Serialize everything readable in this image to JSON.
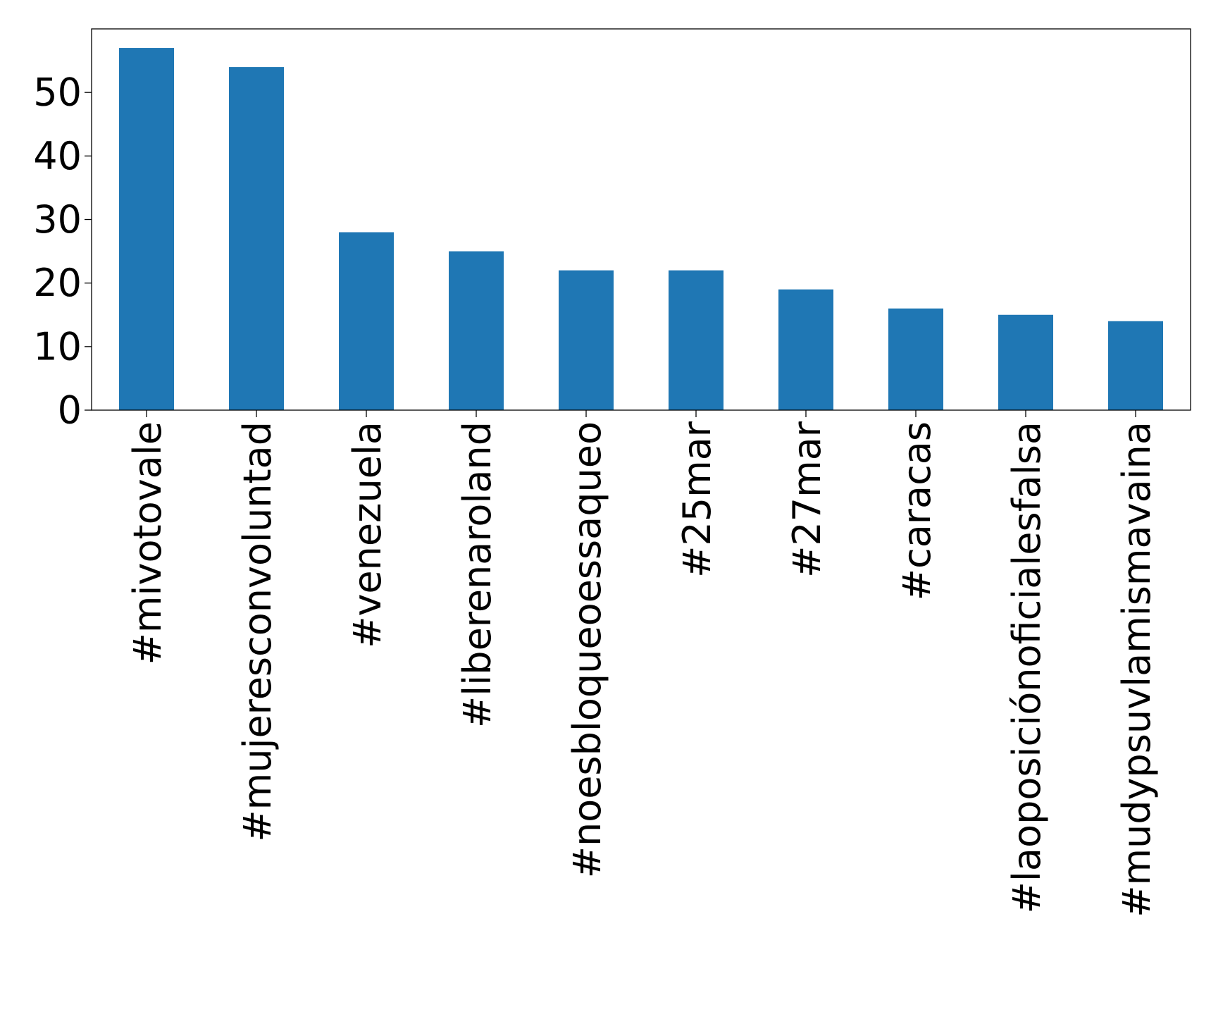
{
  "chart_data": {
    "type": "bar",
    "title": "",
    "xlabel": "",
    "ylabel": "",
    "categories": [
      "#mivotovale",
      "#mujeresconvoluntad",
      "#venezuela",
      "#liberenaroland",
      "#noesbloqueoessaqueo",
      "#25mar",
      "#27mar",
      "#caracas",
      "#laoposiciónoficialesfalsa",
      "#mudypsuvlamismavaina"
    ],
    "values": [
      57,
      54,
      28,
      25,
      22,
      22,
      19,
      16,
      15,
      14
    ],
    "ylim": [
      0,
      60
    ],
    "yticks": [
      0,
      10,
      20,
      30,
      40,
      50
    ],
    "bar_color": "#1f77b4",
    "grid": false,
    "legend": "none"
  }
}
